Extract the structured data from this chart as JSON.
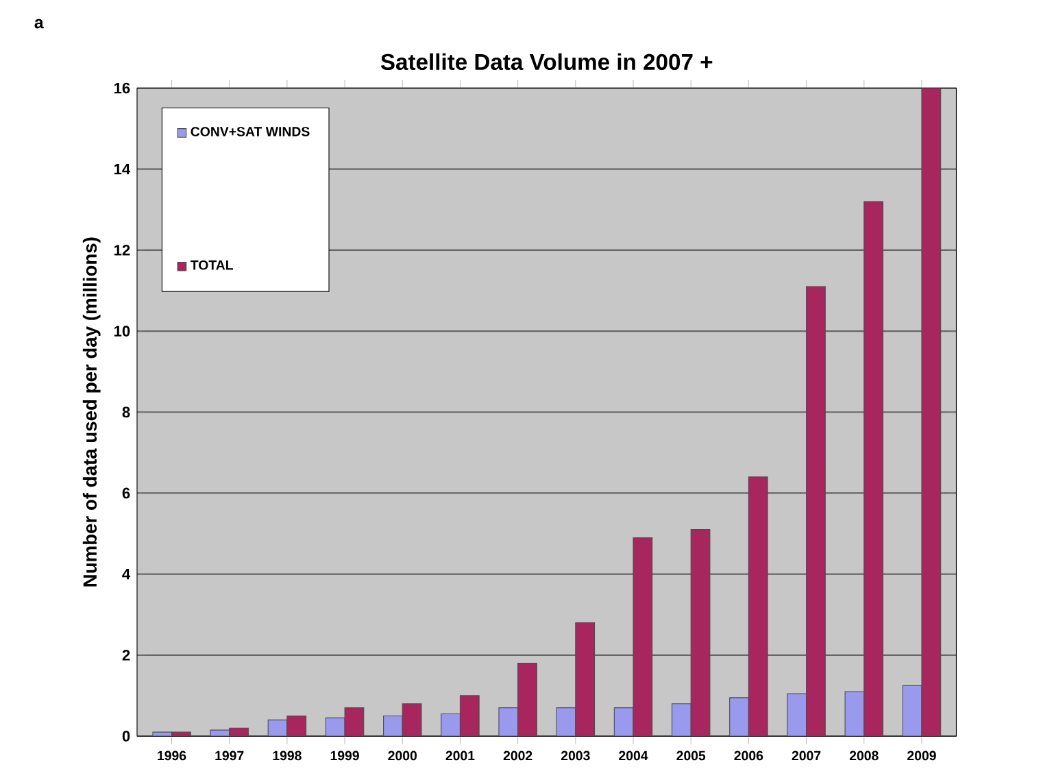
{
  "chart_data": {
    "type": "bar",
    "title": "Satellite Data Volume in 2007 +",
    "ylabel": "Number of data used per day (millions)",
    "annotations": [
      "a"
    ],
    "categories": [
      "1996",
      "1997",
      "1998",
      "1999",
      "2000",
      "2001",
      "2002",
      "2003",
      "2004",
      "2005",
      "2006",
      "2007",
      "2008",
      "2009"
    ],
    "series": [
      {
        "name": "CONV+SAT WINDS",
        "color": "#9999ee",
        "values": [
          0.1,
          0.15,
          0.4,
          0.45,
          0.5,
          0.55,
          0.7,
          0.7,
          0.7,
          0.8,
          0.95,
          1.05,
          1.1,
          1.25
        ]
      },
      {
        "name": "TOTAL",
        "color": "#a8265e",
        "values": [
          0.1,
          0.2,
          0.5,
          0.7,
          0.8,
          1.0,
          1.8,
          2.8,
          4.9,
          5.1,
          6.4,
          11.1,
          13.2,
          16.0
        ]
      }
    ],
    "ylim": [
      0,
      16
    ],
    "yticks": [
      0,
      2,
      4,
      6,
      8,
      10,
      12,
      14,
      16
    ],
    "grid": "y",
    "legend": "top left"
  }
}
